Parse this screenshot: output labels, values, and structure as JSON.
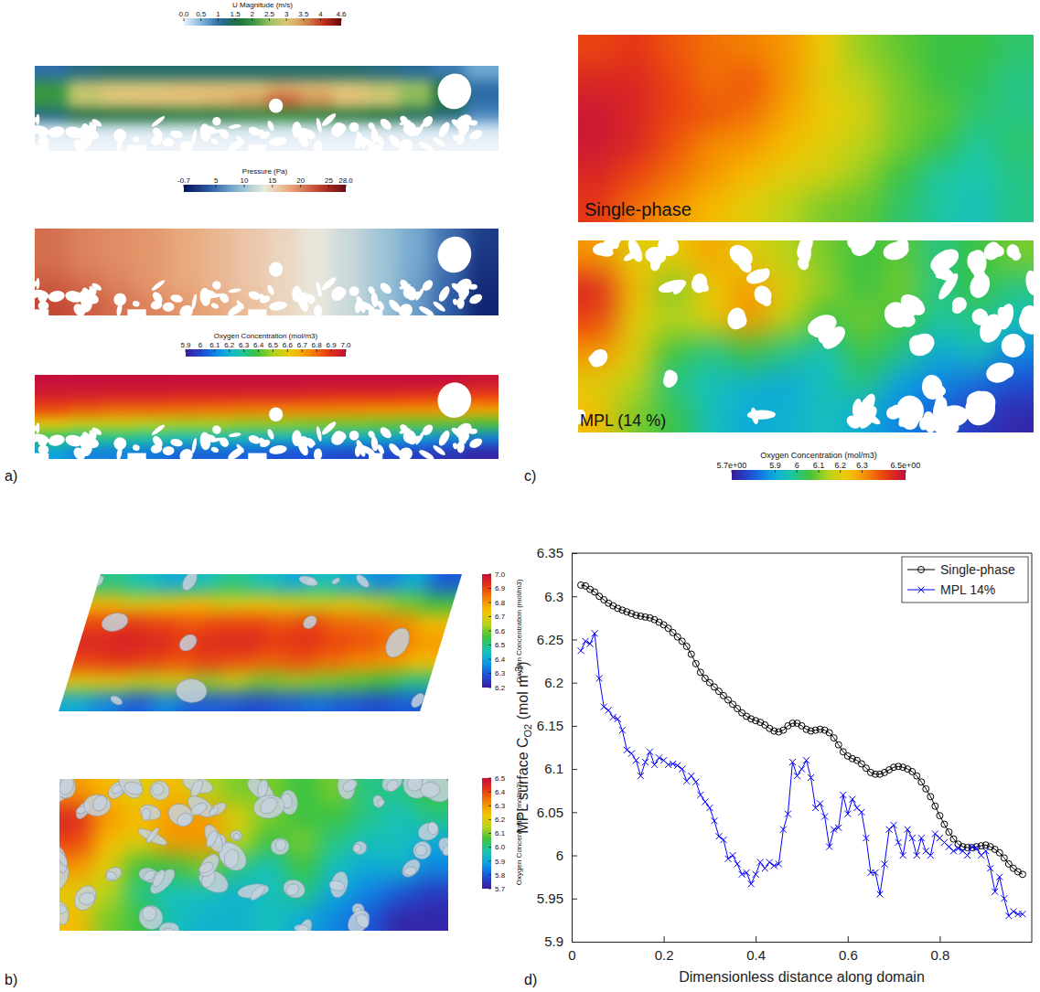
{
  "panel_labels": [
    "a)",
    "b)",
    "c)",
    "d)"
  ],
  "chart_data": [
    {
      "type": "heatmap",
      "color": "bluegreenred",
      "colorbar_title": "U Magnitude (m/s)",
      "colorbar_range": [
        0,
        4.6
      ],
      "colorbar_ticks": [
        {
          "value": 0,
          "label": "0.0"
        },
        0.5,
        1,
        1.5,
        2,
        2.5,
        3,
        3.5,
        4,
        4.6
      ],
      "values": [
        [
          1.0,
          1.2,
          1.3,
          1.3,
          1.3,
          1.3,
          1.3,
          1.3,
          1.3,
          1.3,
          1.2,
          1.1,
          0.9,
          0.6
        ],
        [
          2.0,
          2.8,
          3.0,
          3.0,
          3.1,
          3.1,
          3.1,
          3.3,
          3.2,
          3.0,
          2.8,
          2.5,
          1.5,
          1.0
        ],
        [
          2.0,
          2.8,
          3.0,
          3.1,
          3.1,
          3.2,
          3.4,
          3.8,
          3.5,
          3.1,
          2.9,
          2.4,
          1.6,
          1.0
        ],
        [
          1.2,
          1.5,
          1.6,
          1.6,
          1.7,
          1.7,
          1.8,
          1.9,
          1.8,
          1.7,
          1.6,
          1.4,
          1.2,
          0.8
        ],
        [
          0.1,
          0.1,
          0.1,
          0.1,
          0.1,
          0.1,
          0.1,
          0.1,
          0.1,
          0.1,
          0.1,
          0.1,
          0.1,
          0.1
        ],
        [
          0,
          0,
          0,
          0,
          0,
          0,
          0,
          0,
          0,
          0,
          0,
          0,
          0,
          0
        ]
      ]
    },
    {
      "type": "heatmap",
      "color": "coolwarm",
      "colorbar_title": "Pressure (Pa)",
      "colorbar_range": [
        -0.7,
        28
      ],
      "colorbar_ticks": [
        -0.7,
        5,
        10,
        15,
        20,
        25,
        {
          "value": 28,
          "label": "28.0"
        }
      ],
      "values": [
        [
          21,
          20,
          19.5,
          19,
          18,
          17,
          16,
          15,
          13.5,
          12,
          10,
          8,
          5,
          2
        ],
        [
          21,
          20,
          19.5,
          19,
          18,
          17,
          16,
          15,
          13.5,
          12,
          10,
          8,
          5,
          1.5
        ],
        [
          22,
          21,
          20,
          19,
          18,
          17,
          16,
          15,
          13.5,
          12,
          10,
          7.5,
          4.5,
          1
        ],
        [
          23,
          22,
          21,
          20,
          19,
          18,
          16.5,
          15,
          13.5,
          12,
          10,
          7.5,
          4,
          0.5
        ]
      ]
    },
    {
      "type": "heatmap",
      "color": "rainbow",
      "colorbar_title": "Oxygen Concentration (mol/m3)",
      "colorbar_range": [
        5.9,
        7.0
      ],
      "colorbar_ticks": [
        5.9,
        6,
        6.1,
        6.2,
        6.3,
        6.4,
        6.5,
        6.6,
        6.7,
        6.8,
        6.9,
        {
          "value": 7,
          "label": "7.0"
        }
      ],
      "values": [
        [
          7.0,
          7.0,
          7.0,
          7.0,
          7.0,
          7.0,
          7.0,
          7.0,
          7.0,
          7.0,
          7.0,
          7.0,
          7.0,
          6.98
        ],
        [
          6.95,
          6.95,
          6.94,
          6.94,
          6.93,
          6.93,
          6.92,
          6.92,
          6.91,
          6.9,
          6.9,
          6.89,
          6.88,
          6.87
        ],
        [
          6.85,
          6.82,
          6.8,
          6.8,
          6.79,
          6.78,
          6.77,
          6.76,
          6.76,
          6.75,
          6.74,
          6.73,
          6.72,
          6.7
        ],
        [
          6.6,
          6.55,
          6.55,
          6.52,
          6.5,
          6.5,
          6.48,
          6.47,
          6.46,
          6.45,
          6.44,
          6.43,
          6.42,
          6.4
        ],
        [
          6.35,
          6.3,
          6.3,
          6.28,
          6.25,
          6.25,
          6.22,
          6.22,
          6.2,
          6.2,
          6.18,
          6.15,
          6.12,
          6.1
        ],
        [
          6.15,
          6.1,
          6.1,
          6.08,
          6.05,
          6.05,
          6.05,
          6.02,
          6.02,
          6.0,
          6.0,
          5.98,
          5.95,
          5.92
        ]
      ]
    },
    {
      "type": "heatmap",
      "color": "rainbow",
      "colorbar_title": "Oxygen Concentration (mol/m3)",
      "colorbar_range": [
        6.2,
        7.0
      ],
      "colorbar_ticks": [
        {
          "value": 7,
          "label": "7.0"
        },
        6.9,
        6.8,
        6.7,
        6.6,
        6.5,
        6.4,
        6.3,
        6.2
      ],
      "values": [
        [
          6.5,
          6.45,
          6.4,
          6.45,
          6.5,
          6.45,
          6.4,
          6.45,
          6.4,
          6.35,
          6.4,
          6.3
        ],
        [
          6.75,
          6.7,
          6.72,
          6.75,
          6.7,
          6.72,
          6.7,
          6.68,
          6.7,
          6.65,
          6.6,
          6.55
        ],
        [
          6.9,
          6.92,
          6.9,
          6.88,
          6.9,
          6.9,
          6.88,
          6.9,
          6.86,
          6.85,
          6.82,
          6.75
        ],
        [
          6.95,
          6.96,
          6.95,
          6.92,
          6.94,
          6.95,
          6.92,
          6.93,
          6.9,
          6.88,
          6.85,
          6.8
        ],
        [
          6.9,
          6.92,
          6.9,
          6.88,
          6.9,
          6.88,
          6.86,
          6.88,
          6.85,
          6.82,
          6.8,
          6.75
        ],
        [
          6.7,
          6.7,
          6.65,
          6.68,
          6.62,
          6.65,
          6.6,
          6.62,
          6.6,
          6.58,
          6.55,
          6.5
        ],
        [
          6.4,
          6.35,
          6.3,
          6.35,
          6.3,
          6.3,
          6.28,
          6.3,
          6.32,
          6.3,
          6.28,
          6.3
        ]
      ]
    },
    {
      "type": "heatmap",
      "color": "rainbow",
      "colorbar_title": "Oxygen Concentration (mol/m3)",
      "colorbar_range": [
        5.7,
        6.5
      ],
      "colorbar_ticks": [
        6.5,
        6.4,
        6.3,
        6.2,
        6.1,
        {
          "value": 6,
          "label": "6.0"
        },
        5.9,
        5.8,
        5.7
      ],
      "values": [
        [
          6.3,
          6.25,
          6.2,
          6.25,
          6.15,
          6.1,
          6.1,
          6.05,
          6.1,
          6.0,
          6.0,
          6.05
        ],
        [
          6.45,
          6.3,
          6.25,
          6.3,
          6.3,
          6.2,
          6.1,
          6.05,
          6.05,
          6.0,
          5.95,
          6.0
        ],
        [
          6.4,
          6.25,
          6.2,
          6.3,
          6.3,
          6.15,
          6.05,
          6.1,
          6.0,
          5.95,
          5.95,
          5.9
        ],
        [
          6.3,
          6.2,
          6.05,
          6.05,
          6.1,
          6.0,
          5.95,
          6.05,
          5.95,
          5.9,
          5.92,
          5.85
        ],
        [
          6.2,
          6.15,
          6.0,
          5.95,
          5.95,
          5.92,
          5.95,
          6.0,
          5.9,
          5.85,
          5.8,
          5.75
        ],
        [
          6.25,
          6.1,
          6.05,
          5.95,
          5.92,
          5.92,
          5.95,
          5.9,
          5.85,
          5.8,
          5.72,
          5.72
        ]
      ]
    },
    {
      "type": "heatmap",
      "color": "rainbow",
      "annotation": "Single-phase",
      "colorbar_range": [
        5.7,
        6.5
      ],
      "values": [
        [
          6.4,
          6.42,
          6.38,
          6.35,
          6.33,
          6.3,
          6.22,
          6.12,
          6.08,
          6.05,
          6.05,
          6.02
        ],
        [
          6.45,
          6.45,
          6.4,
          6.35,
          6.38,
          6.3,
          6.2,
          6.15,
          6.1,
          6.05,
          6.03,
          6.0
        ],
        [
          6.48,
          6.45,
          6.4,
          6.38,
          6.35,
          6.28,
          6.22,
          6.18,
          6.1,
          6.08,
          6.02,
          6.0
        ],
        [
          6.48,
          6.45,
          6.38,
          6.32,
          6.3,
          6.25,
          6.2,
          6.15,
          6.1,
          6.05,
          5.98,
          6.02
        ],
        [
          6.45,
          6.4,
          6.35,
          6.3,
          6.25,
          6.2,
          6.18,
          6.12,
          6.05,
          5.98,
          5.97,
          6.0
        ],
        [
          6.42,
          6.35,
          6.3,
          6.25,
          6.2,
          6.15,
          6.1,
          6.08,
          6.02,
          5.98,
          5.95,
          6.0
        ]
      ]
    },
    {
      "type": "heatmap",
      "color": "rainbow",
      "annotation": "MPL (14 %)",
      "colorbar_title": "Oxygen Concentration (mol/m3)",
      "colorbar_range": [
        5.7,
        6.5
      ],
      "colorbar_ticks": [
        {
          "value": 5.7,
          "label": "5.7e+00"
        },
        5.9,
        6,
        6.1,
        6.2,
        6.3,
        {
          "value": 6.5,
          "label": "6.5e+00"
        }
      ],
      "values": [
        [
          6.3,
          6.2,
          6.22,
          6.28,
          6.2,
          6.15,
          6.1,
          6.05,
          6.08,
          6.0,
          6.05,
          6.1
        ],
        [
          6.45,
          6.25,
          6.1,
          6.22,
          6.3,
          6.2,
          6.12,
          6.05,
          6.1,
          6.0,
          6.05,
          6.0
        ],
        [
          6.4,
          6.2,
          6.15,
          6.2,
          6.3,
          6.15,
          6.05,
          6.1,
          6.05,
          5.98,
          6.0,
          5.95
        ],
        [
          6.3,
          6.2,
          6.05,
          6.0,
          6.05,
          6.0,
          5.95,
          6.05,
          6.0,
          5.9,
          5.95,
          5.85
        ],
        [
          6.2,
          6.15,
          6.0,
          5.95,
          5.92,
          5.9,
          5.95,
          6.0,
          5.88,
          5.85,
          5.82,
          5.78
        ],
        [
          6.25,
          6.1,
          6.05,
          5.95,
          5.9,
          5.92,
          5.95,
          5.9,
          5.85,
          5.8,
          5.75,
          5.72
        ]
      ]
    },
    {
      "type": "line",
      "xlabel": "Dimensionless distance along domain",
      "ylabel": [
        "MPL surface C",
        "O2",
        " (mol m",
        "-3",
        ")"
      ],
      "xlim": [
        0,
        1
      ],
      "xticks": [
        0,
        0.2,
        0.4,
        0.6,
        0.8
      ],
      "ylim": [
        5.9,
        6.35
      ],
      "yticks": [
        5.9,
        5.95,
        6,
        6.05,
        6.1,
        6.15,
        6.2,
        6.25,
        6.3,
        6.35
      ],
      "legend": "upper right",
      "x": [
        0.02,
        0.03,
        0.04,
        0.05,
        0.06,
        0.07,
        0.08,
        0.09,
        0.1,
        0.11,
        0.12,
        0.13,
        0.14,
        0.15,
        0.16,
        0.17,
        0.18,
        0.19,
        0.2,
        0.21,
        0.22,
        0.23,
        0.24,
        0.25,
        0.26,
        0.27,
        0.28,
        0.29,
        0.3,
        0.31,
        0.32,
        0.33,
        0.34,
        0.35,
        0.36,
        0.37,
        0.38,
        0.39,
        0.4,
        0.41,
        0.42,
        0.43,
        0.44,
        0.45,
        0.46,
        0.47,
        0.48,
        0.49,
        0.5,
        0.51,
        0.52,
        0.53,
        0.54,
        0.55,
        0.56,
        0.57,
        0.58,
        0.59,
        0.6,
        0.61,
        0.62,
        0.63,
        0.64,
        0.65,
        0.66,
        0.67,
        0.68,
        0.69,
        0.7,
        0.71,
        0.72,
        0.73,
        0.74,
        0.75,
        0.76,
        0.77,
        0.78,
        0.79,
        0.8,
        0.81,
        0.82,
        0.83,
        0.84,
        0.85,
        0.86,
        0.87,
        0.88,
        0.89,
        0.9,
        0.91,
        0.92,
        0.93,
        0.94,
        0.95,
        0.96,
        0.97,
        0.98
      ],
      "series": [
        {
          "name": "Single-phase",
          "color": "#000000",
          "marker": "circle",
          "line_style": "solid",
          "values": [
            6.313,
            6.312,
            6.308,
            6.305,
            6.3,
            6.296,
            6.292,
            6.289,
            6.286,
            6.284,
            6.282,
            6.28,
            6.278,
            6.277,
            6.276,
            6.275,
            6.273,
            6.27,
            6.267,
            6.263,
            6.258,
            6.253,
            6.248,
            6.242,
            6.233,
            6.222,
            6.212,
            6.205,
            6.2,
            6.195,
            6.19,
            6.185,
            6.18,
            6.175,
            6.17,
            6.165,
            6.161,
            6.158,
            6.156,
            6.154,
            6.151,
            6.147,
            6.144,
            6.143,
            6.145,
            6.15,
            6.153,
            6.153,
            6.15,
            6.146,
            6.144,
            6.145,
            6.146,
            6.145,
            6.142,
            6.136,
            6.128,
            6.12,
            6.115,
            6.112,
            6.11,
            6.106,
            6.101,
            6.096,
            6.094,
            6.094,
            6.096,
            6.099,
            6.102,
            6.103,
            6.102,
            6.1,
            6.097,
            6.092,
            6.085,
            6.077,
            6.068,
            6.057,
            6.046,
            6.036,
            6.027,
            6.019,
            6.013,
            6.01,
            6.009,
            6.009,
            6.01,
            6.011,
            6.012,
            6.01,
            6.007,
            6.003,
            5.997,
            5.99,
            5.985,
            5.981,
            5.978
          ]
        },
        {
          "name": "MPL 14%",
          "color": "#0000ff",
          "marker": "x",
          "line_style": "solid",
          "values": [
            6.237,
            6.248,
            6.245,
            6.257,
            6.205,
            6.172,
            6.168,
            6.16,
            6.158,
            6.145,
            6.122,
            6.118,
            6.11,
            6.092,
            6.108,
            6.12,
            6.105,
            6.113,
            6.11,
            6.105,
            6.106,
            6.104,
            6.1,
            6.086,
            6.092,
            6.085,
            6.07,
            6.062,
            6.055,
            6.04,
            6.022,
            6.018,
            5.996,
            6,
            5.99,
            5.978,
            5.98,
            5.967,
            5.978,
            5.992,
            5.985,
            5.992,
            5.988,
            5.99,
            6.03,
            6.048,
            6.108,
            6.092,
            6.1,
            6.11,
            6.09,
            6.055,
            6.06,
            6.045,
            6.01,
            6.03,
            6.032,
            6.07,
            6.048,
            6.065,
            6.055,
            6.05,
            6.02,
            5.98,
            5.98,
            5.955,
            5.99,
            6.03,
            6.035,
            6.015,
            6,
            6.03,
            6.02,
            6,
            6.02,
            6.005,
            6,
            6.025,
            6.02,
            6.015,
            6.01,
            6.005,
            6.008,
            6.005,
            6,
            6.01,
            6.008,
            6,
            6.005,
            5.985,
            5.958,
            5.975,
            5.95,
            5.93,
            5.935,
            5.932,
            5.932
          ]
        }
      ]
    }
  ]
}
